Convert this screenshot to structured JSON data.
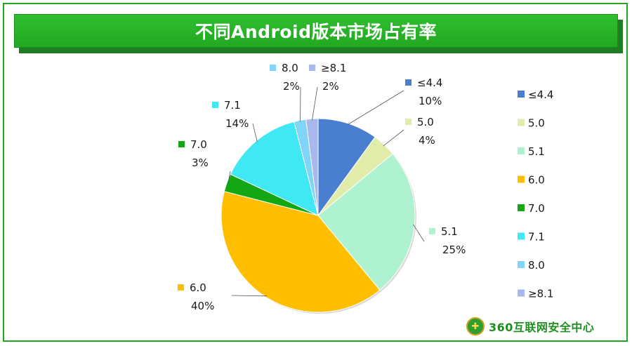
{
  "title": "不同Android版本市场占有率",
  "logo_text": "360互联网安全中心",
  "chart_data": {
    "type": "pie",
    "title": "不同Android版本市场占有率",
    "legend_position": "right",
    "slices": [
      {
        "label": "≤4.4",
        "value": 10,
        "display": "10%",
        "color": "#4a7fd0"
      },
      {
        "label": "5.0",
        "value": 4,
        "display": "4%",
        "color": "#e2ecaa"
      },
      {
        "label": "5.1",
        "value": 25,
        "display": "25%",
        "color": "#aef2cf"
      },
      {
        "label": "6.0",
        "value": 40,
        "display": "40%",
        "color": "#ffbf00"
      },
      {
        "label": "7.0",
        "value": 3,
        "display": "3%",
        "color": "#13a813"
      },
      {
        "label": "7.1",
        "value": 14,
        "display": "14%",
        "color": "#40e8f4"
      },
      {
        "label": "8.0",
        "value": 2,
        "display": "2%",
        "color": "#7fd4f8"
      },
      {
        "label": "≥8.1",
        "value": 2,
        "display": "2%",
        "color": "#a6b8ee"
      }
    ]
  }
}
